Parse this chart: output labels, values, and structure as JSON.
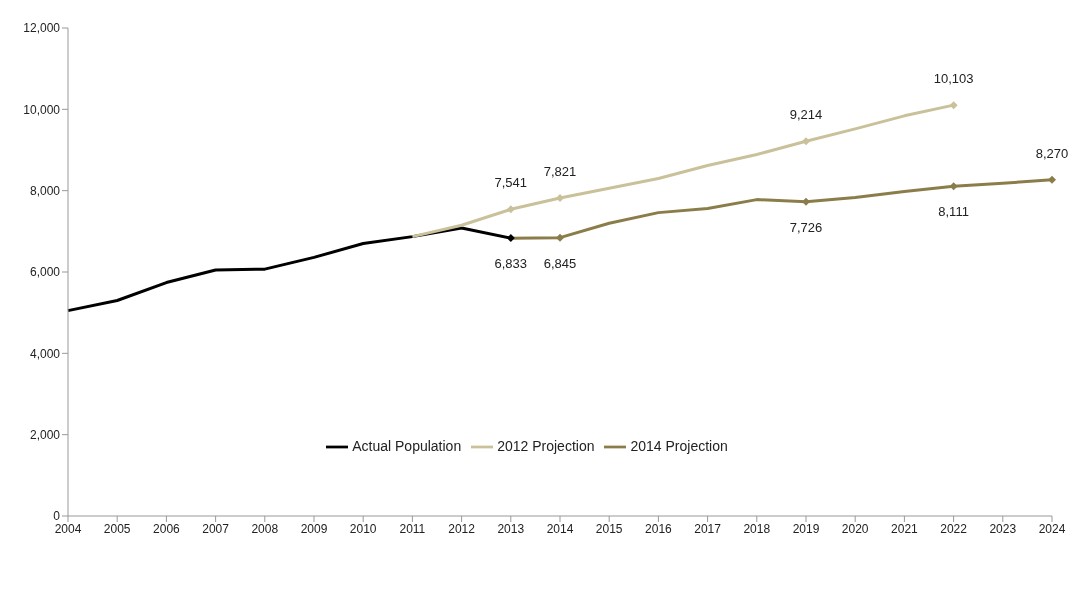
{
  "chart_data": {
    "type": "line",
    "categories": [
      "2004",
      "2005",
      "2006",
      "2007",
      "2008",
      "2009",
      "2010",
      "2011",
      "2012",
      "2013",
      "2014",
      "2015",
      "2016",
      "2017",
      "2018",
      "2019",
      "2020",
      "2021",
      "2022",
      "2023",
      "2024"
    ],
    "series": [
      {
        "name": "Actual Population",
        "color": "#000000",
        "values": [
          5050,
          5300,
          5740,
          6050,
          6070,
          6360,
          6700,
          6870,
          7080,
          6833,
          null,
          null,
          null,
          null,
          null,
          null,
          null,
          null,
          null,
          null,
          null
        ],
        "value_labels": [
          null,
          null,
          null,
          null,
          null,
          null,
          null,
          null,
          null,
          "6,833",
          null,
          null,
          null,
          null,
          null,
          null,
          null,
          null,
          null,
          null,
          null
        ]
      },
      {
        "name": "2012 Projection",
        "color": "#c9c19a",
        "values": [
          null,
          null,
          null,
          null,
          null,
          null,
          null,
          6870,
          7150,
          7541,
          7821,
          8060,
          8300,
          8620,
          8890,
          9214,
          9520,
          9840,
          10103,
          null,
          null
        ],
        "value_labels": [
          null,
          null,
          null,
          null,
          null,
          null,
          null,
          null,
          null,
          "7,541",
          "7,821",
          null,
          null,
          null,
          null,
          "9,214",
          null,
          null,
          "10,103",
          null,
          null
        ]
      },
      {
        "name": "2014 Projection",
        "color": "#8b7d4a",
        "values": [
          null,
          null,
          null,
          null,
          null,
          null,
          null,
          null,
          null,
          6830,
          6845,
          7200,
          7460,
          7560,
          7780,
          7726,
          7830,
          7980,
          8111,
          8180,
          8270
        ],
        "value_labels": [
          null,
          null,
          null,
          null,
          null,
          null,
          null,
          null,
          null,
          null,
          "6,845",
          null,
          null,
          null,
          null,
          "7,726",
          null,
          null,
          "8,111",
          null,
          "8,270"
        ]
      }
    ],
    "ylim": [
      0,
      12000
    ],
    "yticks": [
      0,
      {
        "value": 2000,
        "label": "2,000"
      },
      {
        "value": 4000,
        "label": "4,000"
      },
      {
        "value": 6000,
        "label": "6,000"
      },
      {
        "value": 8000,
        "label": "8,000"
      },
      {
        "value": 10000,
        "label": "10,000"
      },
      {
        "value": 12000,
        "label": "12,000"
      }
    ],
    "grid": false,
    "legend": "bottom",
    "line_style": "solid"
  }
}
